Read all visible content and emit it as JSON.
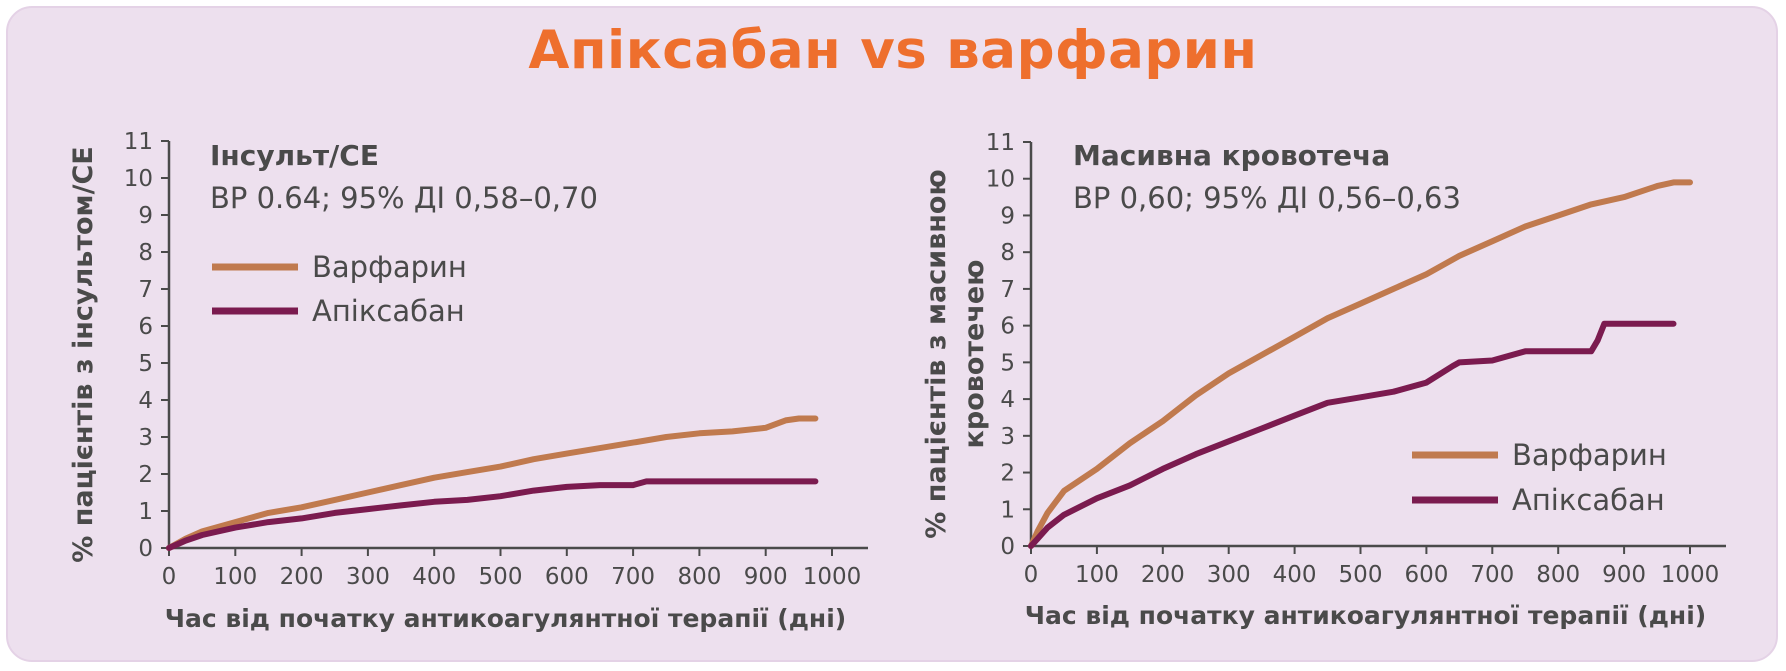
{
  "title": "Апіксабан vs варфарин",
  "colors": {
    "warfarin": "#c07a4e",
    "apixaban": "#7b1b4f",
    "axis": "#4a4a4a",
    "title": "#ee6f2d",
    "background": "#ede0ee"
  },
  "chart_data": [
    {
      "type": "line",
      "title": "Інсульт/СЕ",
      "subtitle": "ВР 0.64; 95% ДІ 0,58–0,70",
      "xlabel": "Час від початку антикоагулянтної терапії (дні)",
      "ylabel": "% пацієнтів з інсультом/СЕ",
      "xlim": [
        0,
        1000
      ],
      "ylim": [
        0,
        11
      ],
      "xticks": [
        0,
        100,
        200,
        300,
        400,
        500,
        600,
        700,
        800,
        900,
        1000
      ],
      "yticks": [
        0,
        1,
        2,
        3,
        4,
        5,
        6,
        7,
        8,
        9,
        10,
        11
      ],
      "legend_position": "upper-left",
      "series": [
        {
          "name": "Варфарин",
          "color": "#c07a4e",
          "x": [
            0,
            25,
            50,
            100,
            150,
            200,
            250,
            300,
            350,
            400,
            450,
            500,
            550,
            600,
            650,
            700,
            750,
            800,
            850,
            900,
            930,
            950,
            975
          ],
          "y": [
            0,
            0.25,
            0.45,
            0.7,
            0.95,
            1.1,
            1.3,
            1.5,
            1.7,
            1.9,
            2.05,
            2.2,
            2.4,
            2.55,
            2.7,
            2.85,
            3.0,
            3.1,
            3.15,
            3.25,
            3.45,
            3.5,
            3.5
          ]
        },
        {
          "name": "Апіксабан",
          "color": "#7b1b4f",
          "x": [
            0,
            25,
            50,
            100,
            150,
            200,
            250,
            300,
            350,
            400,
            450,
            500,
            550,
            600,
            650,
            700,
            720,
            800,
            900,
            975
          ],
          "y": [
            0,
            0.2,
            0.35,
            0.55,
            0.7,
            0.8,
            0.95,
            1.05,
            1.15,
            1.25,
            1.3,
            1.4,
            1.55,
            1.65,
            1.7,
            1.7,
            1.8,
            1.8,
            1.8,
            1.8
          ]
        }
      ]
    },
    {
      "type": "line",
      "title": "Масивна кровотеча",
      "subtitle": "ВР 0,60; 95% ДІ 0,56–0,63",
      "xlabel": "Час від початку антикоагулянтної терапії (дні)",
      "ylabel": "% пацієнтів з масивною кровотечею",
      "ylabel_lines": [
        "% пацієнтів з масивною",
        "кровотечею"
      ],
      "xlim": [
        0,
        1000
      ],
      "ylim": [
        0,
        11
      ],
      "xticks": [
        0,
        100,
        200,
        300,
        400,
        500,
        600,
        700,
        800,
        900,
        1000
      ],
      "yticks": [
        0,
        1,
        2,
        3,
        4,
        5,
        6,
        7,
        8,
        9,
        10,
        11
      ],
      "legend_position": "lower-right",
      "series": [
        {
          "name": "Варфарин",
          "color": "#c07a4e",
          "x": [
            0,
            10,
            25,
            50,
            100,
            150,
            200,
            250,
            300,
            350,
            400,
            450,
            500,
            550,
            600,
            650,
            700,
            750,
            800,
            850,
            900,
            950,
            975,
            1000
          ],
          "y": [
            0,
            0.4,
            0.9,
            1.5,
            2.1,
            2.8,
            3.4,
            4.1,
            4.7,
            5.2,
            5.7,
            6.2,
            6.6,
            7.0,
            7.4,
            7.9,
            8.3,
            8.7,
            9.0,
            9.3,
            9.5,
            9.8,
            9.9,
            9.9
          ]
        },
        {
          "name": "Апіксабан",
          "color": "#7b1b4f",
          "x": [
            0,
            10,
            25,
            50,
            100,
            150,
            200,
            250,
            300,
            350,
            400,
            450,
            500,
            550,
            600,
            640,
            650,
            700,
            750,
            800,
            850,
            860,
            870,
            900,
            975
          ],
          "y": [
            0,
            0.2,
            0.5,
            0.85,
            1.3,
            1.65,
            2.1,
            2.5,
            2.85,
            3.2,
            3.55,
            3.9,
            4.05,
            4.2,
            4.45,
            4.9,
            5.0,
            5.05,
            5.3,
            5.3,
            5.3,
            5.6,
            6.05,
            6.05,
            6.05
          ]
        }
      ]
    }
  ]
}
